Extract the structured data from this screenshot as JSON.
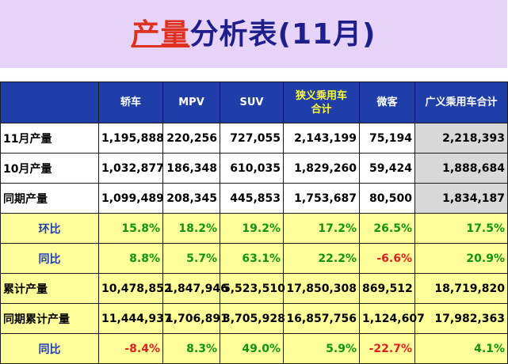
{
  "title": {
    "highlight": "产量",
    "rest": "分析表(11月)"
  },
  "headers": [
    "",
    "轿车",
    "MPV",
    "SUV",
    "狭义乘用车\n合计",
    "微客",
    "广义乘用车合计"
  ],
  "rows": [
    {
      "label": "11月产量",
      "values": [
        "1,195,888",
        "220,256",
        "727,055",
        "2,143,199",
        "75,194",
        "2,218,393"
      ]
    },
    {
      "label": "10月产量",
      "values": [
        "1,032,877",
        "186,348",
        "610,035",
        "1,829,260",
        "59,424",
        "1,888,684"
      ]
    },
    {
      "label": "同期产量",
      "values": [
        "1,099,489",
        "208,345",
        "445,853",
        "1,753,687",
        "80,500",
        "1,834,187"
      ]
    },
    {
      "label": "环比",
      "values": [
        "15.8%",
        "18.2%",
        "19.2%",
        "17.2%",
        "26.5%",
        "17.5%"
      ]
    },
    {
      "label": "同比",
      "values": [
        "8.8%",
        "5.7%",
        "63.1%",
        "22.2%",
        "-6.6%",
        "20.9%"
      ]
    },
    {
      "label": "累计产量",
      "values": [
        "10,478,852",
        "1,847,946",
        "5,523,510",
        "17,850,308",
        "869,512",
        "18,719,820"
      ]
    },
    {
      "label": "同期累计产量",
      "values": [
        "11,444,937",
        "1,706,891",
        "3,705,928",
        "16,857,756",
        "1,124,607",
        "17,982,363"
      ]
    },
    {
      "label": "同比",
      "values": [
        "-8.4%",
        "8.3%",
        "49.0%",
        "5.9%",
        "-22.7%",
        "4.1%"
      ]
    }
  ],
  "colors": {
    "header_bg": "#1f3ea8",
    "title_bg": "#e6d3f7",
    "positive": "#119411",
    "negative": "#e02020",
    "highlight_row": "#ffff99"
  }
}
